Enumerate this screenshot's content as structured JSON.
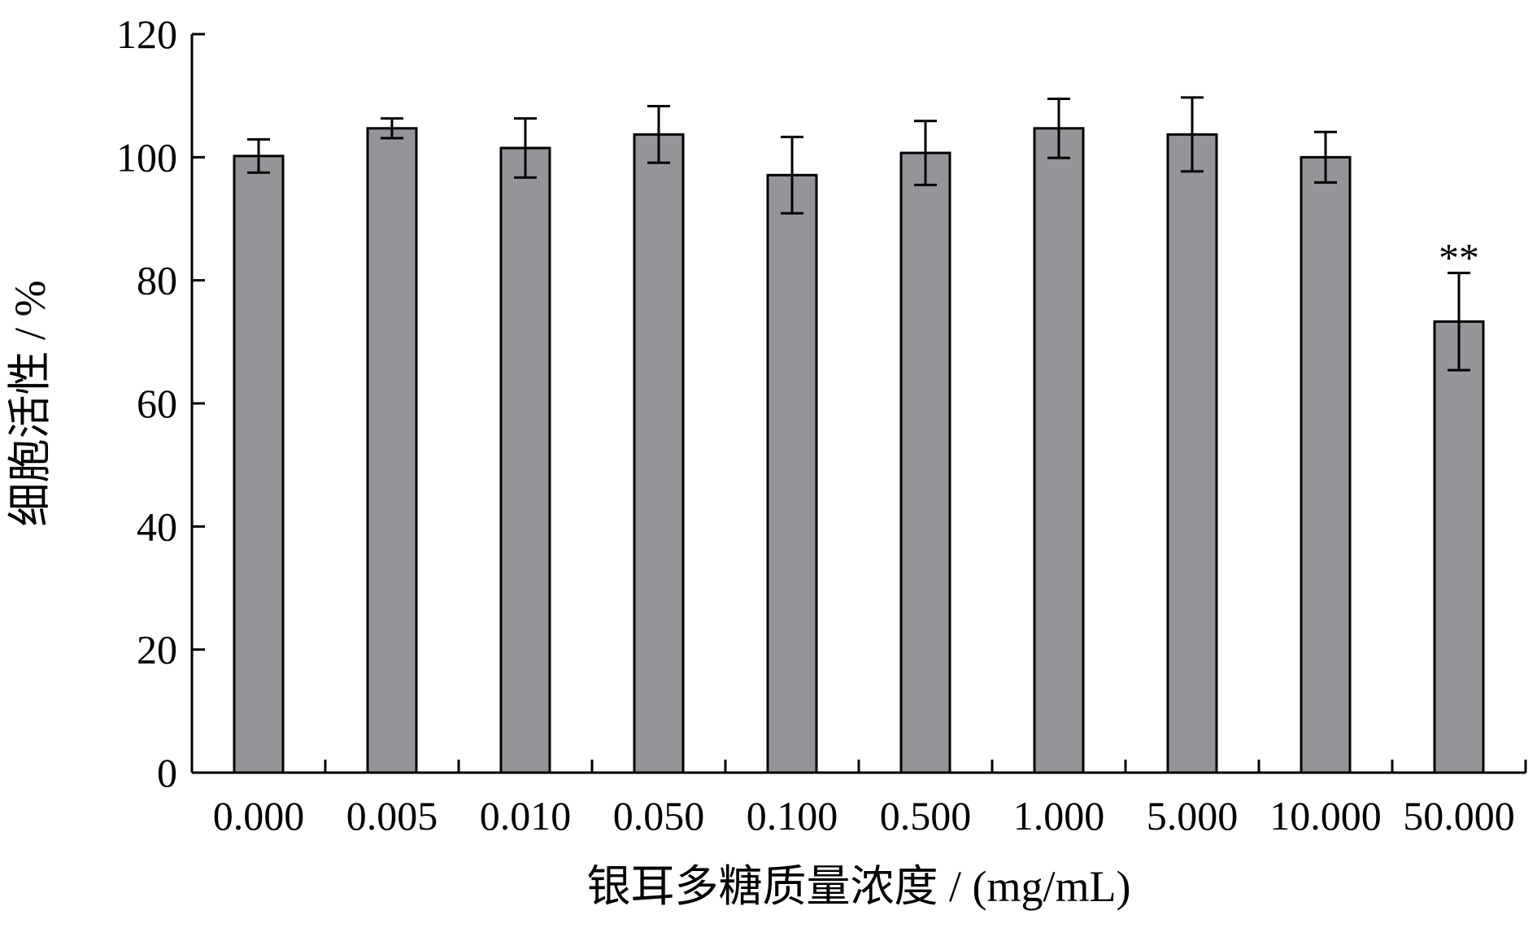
{
  "chart_data": {
    "type": "bar",
    "title": "",
    "xlabel": "银耳多糖质量浓度 / (mg/mL)",
    "ylabel": "细胞活性 / %",
    "categories": [
      "0.000",
      "0.005",
      "0.010",
      "0.050",
      "0.100",
      "0.500",
      "1.000",
      "5.000",
      "10.000",
      "50.000"
    ],
    "values": [
      100.2,
      104.7,
      101.5,
      103.7,
      97.1,
      100.7,
      104.7,
      103.7,
      100.0,
      73.3
    ],
    "errors": [
      2.7,
      1.6,
      4.8,
      4.6,
      6.2,
      5.2,
      4.8,
      6.0,
      4.1,
      7.9
    ],
    "annotations": [
      {
        "category": "50.000",
        "text": "**"
      }
    ],
    "ylim": [
      0,
      120
    ],
    "yticks": [
      0,
      20,
      40,
      60,
      80,
      100,
      120
    ],
    "grid": false,
    "colors": {
      "bar": "#939598",
      "stroke": "#000000"
    }
  }
}
